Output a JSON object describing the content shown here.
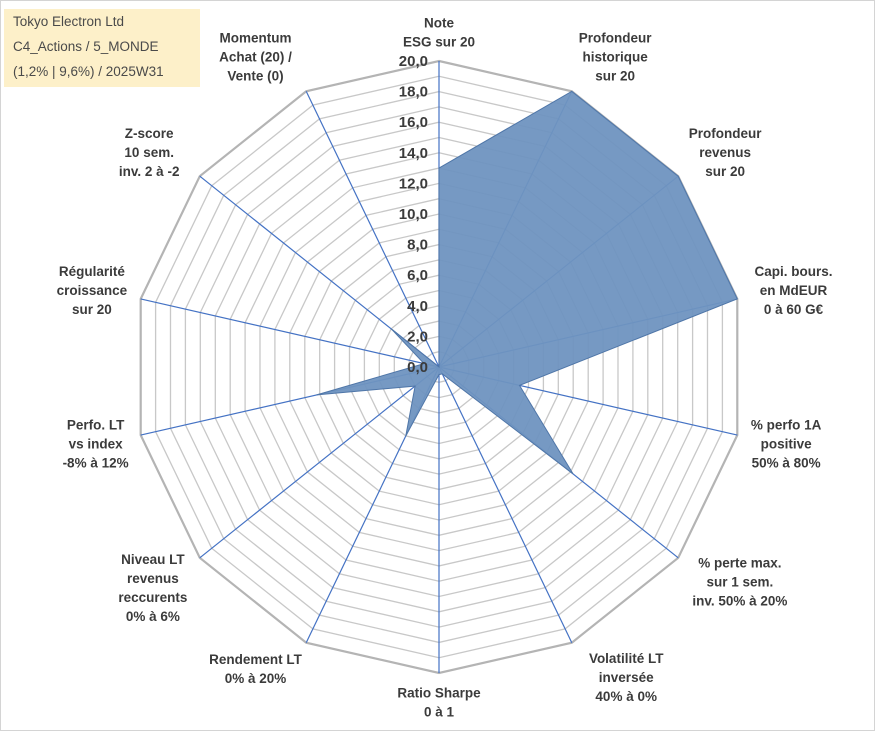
{
  "title_box": {
    "lines": [
      "Tokyo Electron Ltd",
      "C4_Actions / 5_MONDE",
      "(1,2% | 9,6%) / 2025W31"
    ],
    "background": "#fdf0c9"
  },
  "chart_data": {
    "type": "radar",
    "title": "",
    "axes": [
      {
        "lines": [
          "Note",
          "ESG sur 20"
        ]
      },
      {
        "lines": [
          "Profondeur",
          "historique",
          "sur 20"
        ]
      },
      {
        "lines": [
          "Profondeur",
          "revenus",
          "sur 20"
        ]
      },
      {
        "lines": [
          "Capi. bours.",
          "en MdEUR",
          "0 à 60 G€"
        ]
      },
      {
        "lines": [
          "% perfo 1A",
          "positive",
          "50% à 80%"
        ]
      },
      {
        "lines": [
          "% perte max.",
          "sur 1 sem.",
          "inv. 50% à 20%"
        ]
      },
      {
        "lines": [
          "Volatilité LT",
          "inversée",
          "40% à 0%"
        ]
      },
      {
        "lines": [
          "Ratio Sharpe",
          "0 à 1"
        ]
      },
      {
        "lines": [
          "Rendement LT",
          "0% à 20%"
        ]
      },
      {
        "lines": [
          "Niveau LT",
          "revenus",
          "reccurents",
          "0% à 6%"
        ]
      },
      {
        "lines": [
          "Perfo. LT",
          "vs index",
          "-8% à 12%"
        ]
      },
      {
        "lines": [
          "Régularité",
          "croissance",
          "sur 20"
        ]
      },
      {
        "lines": [
          "Z-score",
          "10 sem.",
          "inv. 2 à -2"
        ]
      },
      {
        "lines": [
          "Momentum",
          "Achat (20) /",
          "Vente (0)"
        ]
      }
    ],
    "ticks": [
      "0,0",
      "2,0",
      "4,0",
      "6,0",
      "8,0",
      "10,0",
      "12,0",
      "14,0",
      "16,0",
      "18,0",
      "20,0"
    ],
    "rmin": 0,
    "rmax": 20,
    "grid_step": 1,
    "series": [
      {
        "values": [
          13,
          20,
          20,
          20,
          5.4,
          11.2,
          0.5,
          0.5,
          5,
          2,
          8.2,
          1,
          4,
          0
        ],
        "fill": "#6f93c0",
        "stroke": "#4f76a8"
      }
    ],
    "grid_color": "#c8c8c8",
    "outer_grid_color": "#b4b4b4",
    "spoke_color": "#4472c4",
    "grid": true,
    "legend": "none"
  }
}
